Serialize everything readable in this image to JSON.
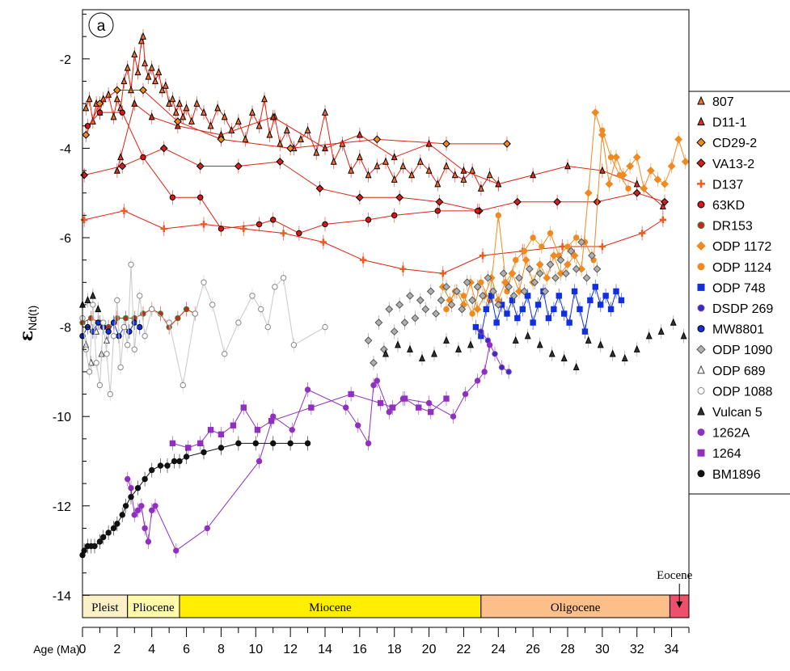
{
  "chart_data": {
    "type": "scatter",
    "panel_label": "a",
    "ylabel_main": "ε",
    "ylabel_sub": "Nd(t)",
    "xlabel": "Age (Ma)",
    "xlim": [
      0,
      35
    ],
    "ylim": [
      -14.5,
      -0.9
    ],
    "x_ticks": [
      0,
      2,
      4,
      6,
      8,
      10,
      12,
      14,
      16,
      18,
      20,
      22,
      24,
      26,
      28,
      30,
      32,
      34
    ],
    "y_ticks": [
      -14,
      -12,
      -10,
      -8,
      -6,
      -4,
      -2
    ],
    "epochs": [
      {
        "name": "Pleist",
        "start": 0,
        "end": 2.6,
        "color": "#fbf0c8"
      },
      {
        "name": "Pliocene",
        "start": 2.6,
        "end": 5.6,
        "color": "#fffaa8"
      },
      {
        "name": "Miocene",
        "start": 5.6,
        "end": 23.0,
        "color": "#ffee00"
      },
      {
        "name": "Oligocene",
        "start": 23.0,
        "end": 33.9,
        "color": "#fdbf8a"
      },
      {
        "name": "Eocene",
        "start": 33.9,
        "end": 35.0,
        "color": "#ee4f6a"
      }
    ],
    "legend_position": "right",
    "series": [
      {
        "name": "807",
        "marker": "triangle",
        "color": "#f07030",
        "stroke": "#000000",
        "line": "#e02010",
        "x": [
          0.2,
          0.4,
          0.6,
          0.8,
          1.0,
          1.2,
          1.5,
          1.8,
          2.0,
          2.2,
          2.4,
          2.6,
          2.8,
          3.0,
          3.2,
          3.4,
          3.5,
          3.6,
          3.8,
          4.0,
          4.2,
          4.4,
          4.6,
          4.8,
          5.0,
          5.2,
          5.4,
          5.6,
          5.8,
          6.0,
          6.3,
          6.6,
          7.0,
          7.4,
          7.8,
          8.2,
          8.6,
          9.0,
          9.4,
          9.8,
          10.2,
          10.5,
          10.8,
          11.1,
          11.4,
          11.8,
          12.2,
          12.6,
          13.0,
          13.5,
          14.0,
          14.5,
          15.0,
          15.5,
          16.0,
          16.5,
          17.0,
          17.5,
          18.0,
          18.5,
          19.0,
          19.5,
          20.0,
          20.5,
          21.0,
          21.5,
          22.0,
          22.5,
          23.0,
          23.5,
          24.0
        ],
        "y": [
          -3.1,
          -2.9,
          -3.4,
          -3.0,
          -3.2,
          -2.9,
          -2.8,
          -3.3,
          -2.9,
          -3.1,
          -2.5,
          -2.2,
          -2.7,
          -1.9,
          -2.3,
          -1.6,
          -1.5,
          -2.1,
          -2.4,
          -2.2,
          -2.5,
          -2.3,
          -2.7,
          -2.6,
          -3.0,
          -2.9,
          -3.2,
          -3.0,
          -3.3,
          -3.1,
          -3.4,
          -3.0,
          -3.2,
          -3.5,
          -3.1,
          -3.3,
          -3.6,
          -3.4,
          -3.8,
          -3.2,
          -3.5,
          -2.9,
          -3.7,
          -3.3,
          -3.9,
          -3.6,
          -4.0,
          -3.8,
          -3.6,
          -4.1,
          -3.2,
          -4.3,
          -3.9,
          -4.5,
          -4.2,
          -4.6,
          -4.4,
          -4.3,
          -4.7,
          -4.4,
          -4.6,
          -4.3,
          -4.5,
          -4.8,
          -4.4,
          -4.6,
          -4.7,
          -4.5,
          -4.9,
          -4.6,
          -4.8
        ]
      },
      {
        "name": "D11-1",
        "marker": "triangle",
        "color": "#e03020",
        "stroke": "#000000",
        "line": "#e02010",
        "x": [
          2.0,
          2.2,
          3.0,
          4.0,
          5.5,
          8.0,
          11.0,
          14.0,
          16.0,
          18.0,
          20.0,
          22.0,
          24.0,
          26.0,
          28.0,
          30.0,
          32.0,
          33.5
        ],
        "y": [
          -4.5,
          -4.2,
          -3.0,
          -3.3,
          -3.5,
          -3.7,
          -3.3,
          -4.0,
          -3.7,
          -4.2,
          -3.9,
          -4.5,
          -4.8,
          -4.6,
          -4.4,
          -4.5,
          -4.8,
          -5.3
        ]
      },
      {
        "name": "CD29-2",
        "marker": "diamond",
        "color": "#f08a20",
        "stroke": "#000000",
        "line": "#e02010",
        "x": [
          0.2,
          1.0,
          2.0,
          3.5,
          5.5,
          8.0,
          12.0,
          17.0,
          21.0,
          24.5
        ],
        "y": [
          -3.7,
          -3.0,
          -2.7,
          -2.7,
          -3.4,
          -3.8,
          -4.0,
          -3.8,
          -3.9,
          -3.9
        ]
      },
      {
        "name": "VA13-2",
        "marker": "diamond",
        "color": "#d02020",
        "stroke": "#000000",
        "line": "#e02010",
        "x": [
          0.1,
          2.3,
          4.7,
          6.8,
          9.0,
          11.4,
          13.7,
          16.0,
          18.3,
          20.6,
          22.9,
          25.1,
          27.4,
          29.7,
          32.0,
          33.6
        ],
        "y": [
          -4.6,
          -4.4,
          -4.0,
          -4.4,
          -4.4,
          -4.3,
          -4.9,
          -5.1,
          -5.1,
          -5.2,
          -5.4,
          -5.2,
          -5.2,
          -5.2,
          -5.0,
          -5.2
        ]
      },
      {
        "name": "D137",
        "marker": "plus",
        "color": "#f05a20",
        "stroke": "#f05a20",
        "line": "#e02010",
        "x": [
          0.1,
          2.4,
          4.7,
          7.0,
          9.3,
          11.6,
          13.9,
          16.2,
          18.5,
          20.8,
          23.1,
          25.4,
          27.7,
          30.0,
          32.3,
          33.5
        ],
        "y": [
          -5.6,
          -5.4,
          -5.8,
          -5.7,
          -5.8,
          -5.9,
          -6.1,
          -6.5,
          -6.7,
          -6.8,
          -6.4,
          -6.3,
          -6.2,
          -6.2,
          -5.9,
          -5.6
        ]
      },
      {
        "name": "63KD",
        "marker": "circle",
        "color": "#dd1515",
        "stroke": "#000000",
        "line": "#e02010",
        "x": [
          0.3,
          1.0,
          2.3,
          3.5,
          5.2,
          6.8,
          8.0,
          10.2,
          11.0,
          12.5,
          14.0,
          16.5,
          18.0,
          20.5,
          22.8
        ],
        "y": [
          -3.5,
          -3.2,
          -3.2,
          -4.2,
          -5.1,
          -5.1,
          -5.8,
          -5.7,
          -5.6,
          -5.9,
          -5.7,
          -5.6,
          -5.5,
          -5.4,
          -5.4
        ]
      },
      {
        "name": "DR153",
        "marker": "circle",
        "color": "#cc2222",
        "stroke": "#2f8f2f",
        "line": "#e02010",
        "x": [
          0.0,
          0.5,
          1.0,
          1.5,
          2.0,
          2.5,
          3.0,
          3.5,
          4.0,
          4.5,
          5.0,
          5.5,
          6.0,
          6.5
        ],
        "y": [
          -7.9,
          -7.8,
          -7.9,
          -8.0,
          -7.8,
          -7.8,
          -7.8,
          -7.7,
          -7.6,
          -7.7,
          -8.0,
          -7.8,
          -7.6,
          -7.7
        ]
      },
      {
        "name": "ODP 1172",
        "marker": "diamond",
        "color": "#f08a20",
        "stroke": "#f08a20",
        "line": "#f08a20",
        "x": [
          20.8,
          21.2,
          21.6,
          22.0,
          22.4,
          22.8,
          23.2,
          23.6,
          24.0,
          24.4,
          24.8,
          25.2,
          25.6,
          26.0,
          26.4,
          26.8,
          27.2,
          27.6,
          28.0,
          28.4,
          28.8,
          29.2,
          29.6,
          30.0,
          30.4,
          30.8,
          31.2,
          31.6,
          32.0,
          32.4,
          32.8,
          33.2,
          33.6,
          34.0,
          34.4,
          34.8
        ],
        "y": [
          -7.1,
          -7.4,
          -7.2,
          -7.5,
          -7.0,
          -7.6,
          -7.3,
          -6.9,
          -7.4,
          -7.0,
          -6.8,
          -7.2,
          -6.5,
          -7.0,
          -6.6,
          -6.9,
          -6.4,
          -6.8,
          -6.6,
          -6.4,
          -6.7,
          -5.0,
          -3.2,
          -3.7,
          -4.8,
          -4.2,
          -4.6,
          -4.4,
          -4.2,
          -4.9,
          -4.5,
          -4.7,
          -4.8,
          -4.4,
          -3.8,
          -4.3
        ]
      },
      {
        "name": "ODP 1124",
        "marker": "circle",
        "color": "#f08a20",
        "stroke": "#f08a20",
        "line": "#f08a20",
        "x": [
          21.0,
          21.5,
          22.0,
          22.5,
          23.0,
          23.5,
          24.0,
          24.5,
          25.0,
          25.5,
          26.0,
          26.5,
          27.0,
          27.5,
          28.0,
          28.5,
          29.0,
          29.5,
          30.0,
          30.5,
          31.0,
          31.5
        ],
        "y": [
          -7.6,
          -7.2,
          -7.3,
          -7.7,
          -7.0,
          -7.4,
          -5.5,
          -7.2,
          -6.5,
          -6.3,
          -6.0,
          -6.2,
          -5.9,
          -6.4,
          -6.2,
          -6.0,
          -6.1,
          -6.5,
          -3.6,
          -4.2,
          -4.6,
          -4.9
        ]
      },
      {
        "name": "ODP 748",
        "marker": "square",
        "color": "#1030e0",
        "stroke": "#1030e0",
        "line": "#1030e0",
        "x": [
          22.7,
          23.0,
          23.3,
          23.6,
          23.9,
          24.2,
          24.5,
          24.8,
          25.1,
          25.4,
          25.7,
          26.0,
          26.3,
          26.6,
          26.9,
          27.2,
          27.5,
          27.8,
          28.1,
          28.4,
          28.7,
          29.0,
          29.3,
          29.6,
          29.9,
          30.2,
          30.5,
          30.8,
          31.1
        ],
        "y": [
          -8.0,
          -8.2,
          -7.6,
          -7.3,
          -7.9,
          -7.5,
          -7.7,
          -7.4,
          -7.8,
          -7.6,
          -7.3,
          -7.9,
          -7.5,
          -7.2,
          -7.8,
          -7.6,
          -7.3,
          -7.7,
          -7.9,
          -7.2,
          -7.6,
          -8.1,
          -7.4,
          -7.1,
          -7.5,
          -7.3,
          -7.6,
          -7.2,
          -7.4
        ]
      },
      {
        "name": "DSDP 269",
        "marker": "circle",
        "color": "#3030c0",
        "stroke": "#9040c0",
        "line": "#9040c0",
        "x": [
          23.0,
          23.4,
          23.8,
          24.2,
          24.6
        ],
        "y": [
          -8.1,
          -8.3,
          -8.6,
          -8.9,
          -9.0
        ]
      },
      {
        "name": "MW8801",
        "marker": "circle",
        "color": "#1030e0",
        "stroke": "#000000",
        "line": "#1030e0",
        "x": [
          0.0,
          0.3,
          0.6,
          0.9,
          1.2,
          1.5,
          1.8,
          2.1,
          2.4,
          2.7,
          3.0,
          3.3
        ],
        "y": [
          -8.2,
          -8.0,
          -8.1,
          -7.9,
          -8.0,
          -8.1,
          -7.9,
          -8.2,
          -8.0,
          -8.1,
          -7.9,
          -8.0
        ]
      },
      {
        "name": "ODP 1090",
        "marker": "diamond",
        "color": "#b0b0b0",
        "stroke": "#555555",
        "line": "none",
        "x": [
          16.5,
          16.8,
          17.1,
          17.4,
          17.7,
          18.0,
          18.3,
          18.6,
          18.9,
          19.2,
          19.5,
          19.8,
          20.1,
          20.4,
          20.7,
          21.0,
          21.3,
          21.6,
          21.9,
          22.2,
          22.5,
          22.8,
          23.1,
          23.4,
          23.7,
          24.0,
          24.3,
          24.6,
          24.9,
          25.2,
          25.5,
          25.8,
          26.1,
          26.4,
          26.7,
          27.0,
          27.3,
          27.6,
          27.9,
          28.2,
          28.5,
          28.8,
          29.1,
          29.4,
          29.7
        ],
        "y": [
          -8.3,
          -8.8,
          -7.9,
          -8.5,
          -7.6,
          -8.1,
          -7.5,
          -7.9,
          -7.3,
          -7.8,
          -7.4,
          -7.6,
          -7.2,
          -7.7,
          -7.4,
          -7.1,
          -7.5,
          -7.2,
          -7.6,
          -7.0,
          -7.4,
          -7.1,
          -7.3,
          -6.9,
          -7.2,
          -7.5,
          -6.8,
          -7.1,
          -7.3,
          -6.9,
          -7.2,
          -6.7,
          -7.0,
          -6.8,
          -7.2,
          -6.6,
          -6.9,
          -6.5,
          -6.8,
          -6.3,
          -6.7,
          -6.1,
          -6.9,
          -6.4,
          -6.7
        ]
      },
      {
        "name": "ODP 689",
        "marker": "triangle-open",
        "color": "#ffffff",
        "stroke": "#444444",
        "line": "none",
        "x": [
          0.2,
          0.5,
          0.8,
          1.1,
          1.4
        ],
        "y": [
          -8.4,
          -8.8,
          -8.1,
          -8.6,
          -8.3
        ]
      },
      {
        "name": "ODP 1088",
        "marker": "circle-open",
        "color": "#ffffff",
        "stroke": "#888888",
        "line": "#c8c8c8",
        "x": [
          0.0,
          0.2,
          0.4,
          0.6,
          0.8,
          1.0,
          1.2,
          1.4,
          1.6,
          1.8,
          2.0,
          2.2,
          2.4,
          2.6,
          2.8,
          3.0,
          3.3,
          3.6,
          4.0,
          5.0,
          5.8,
          6.5,
          7.0,
          7.5,
          8.2,
          9.0,
          9.8,
          10.3,
          10.7,
          11.1,
          11.6,
          12.2,
          14.0
        ],
        "y": [
          -7.8,
          -8.5,
          -9.0,
          -7.5,
          -8.8,
          -9.3,
          -7.9,
          -8.6,
          -9.5,
          -8.2,
          -7.4,
          -8.9,
          -8.0,
          -8.4,
          -6.6,
          -8.5,
          -7.3,
          -8.2,
          -7.6,
          -7.9,
          -9.3,
          -7.7,
          -7.0,
          -7.5,
          -8.6,
          -7.9,
          -7.3,
          -7.6,
          -8.0,
          -7.1,
          -6.9,
          -8.4,
          -8.0
        ]
      },
      {
        "name": "Vulcan 5",
        "marker": "triangle",
        "color": "#333333",
        "stroke": "#000000",
        "line": "none",
        "x": [
          0.0,
          0.3,
          0.6,
          0.9,
          17.5,
          18.2,
          18.9,
          19.6,
          20.3,
          21.0,
          21.7,
          22.4,
          25.0,
          25.7,
          26.4,
          27.1,
          27.8,
          28.5,
          29.2,
          29.9,
          30.6,
          31.3,
          32.0,
          32.7,
          33.4,
          34.1,
          34.7
        ],
        "y": [
          -7.5,
          -7.4,
          -7.3,
          -7.6,
          -8.6,
          -8.4,
          -8.5,
          -8.7,
          -8.6,
          -8.3,
          -8.5,
          -8.4,
          -8.3,
          -8.2,
          -8.4,
          -8.6,
          -8.7,
          -8.9,
          -8.3,
          -8.4,
          -8.6,
          -8.7,
          -8.5,
          -8.2,
          -8.1,
          -7.9,
          -8.2
        ]
      },
      {
        "name": "1262A",
        "marker": "circle",
        "color": "#9030c0",
        "stroke": "#9030c0",
        "line": "#9030c0",
        "x": [
          2.6,
          2.8,
          3.0,
          3.2,
          3.4,
          3.6,
          3.8,
          4.0,
          4.2,
          5.4,
          7.2,
          10.2,
          11.0,
          12.1,
          13.0,
          15.2,
          15.9,
          16.5,
          16.8,
          17.0,
          17.7,
          18.5,
          20.0,
          21.4,
          22.1,
          22.8,
          23.2,
          23.5
        ],
        "y": [
          -11.4,
          -11.6,
          -12.2,
          -12.1,
          -12.0,
          -12.5,
          -12.8,
          -12.1,
          -12.0,
          -13.0,
          -12.5,
          -11.0,
          -10.0,
          -10.3,
          -9.4,
          -9.8,
          -10.2,
          -10.6,
          -9.3,
          -9.2,
          -9.9,
          -9.6,
          -9.7,
          -10.0,
          -9.5,
          -9.2,
          -9.0,
          -8.4
        ]
      },
      {
        "name": "1264",
        "marker": "square",
        "color": "#9030c0",
        "stroke": "#9030c0",
        "line": "#9030c0",
        "x": [
          5.2,
          6.1,
          6.8,
          7.4,
          8.0,
          8.7,
          9.3,
          10.1,
          10.9,
          13.2,
          15.5,
          17.2,
          17.9,
          18.6,
          19.4,
          20.1,
          21.0
        ],
        "y": [
          -10.6,
          -10.7,
          -10.6,
          -10.3,
          -10.4,
          -10.2,
          -9.8,
          -10.3,
          -10.1,
          -9.8,
          -9.5,
          -9.7,
          -9.8,
          -9.6,
          -9.8,
          -9.9,
          -9.6
        ]
      },
      {
        "name": "BM1896",
        "marker": "circle",
        "color": "#111111",
        "stroke": "#111111",
        "line": "#111111",
        "x": [
          0.0,
          0.1,
          0.3,
          0.5,
          0.7,
          1.0,
          1.2,
          1.5,
          1.8,
          2.0,
          2.3,
          2.5,
          2.8,
          3.2,
          3.6,
          4.0,
          4.5,
          4.9,
          5.3,
          5.6,
          6.0,
          7.0,
          8.0,
          9.0,
          10.0,
          11.0,
          12.0,
          13.0
        ],
        "y": [
          -13.1,
          -13.0,
          -12.9,
          -12.9,
          -12.9,
          -12.8,
          -12.7,
          -12.6,
          -12.5,
          -12.4,
          -12.2,
          -12.0,
          -11.8,
          -11.6,
          -11.4,
          -11.2,
          -11.1,
          -11.1,
          -11.0,
          -11.0,
          -10.9,
          -10.8,
          -10.7,
          -10.6,
          -10.6,
          -10.6,
          -10.6,
          -10.6
        ]
      }
    ]
  }
}
